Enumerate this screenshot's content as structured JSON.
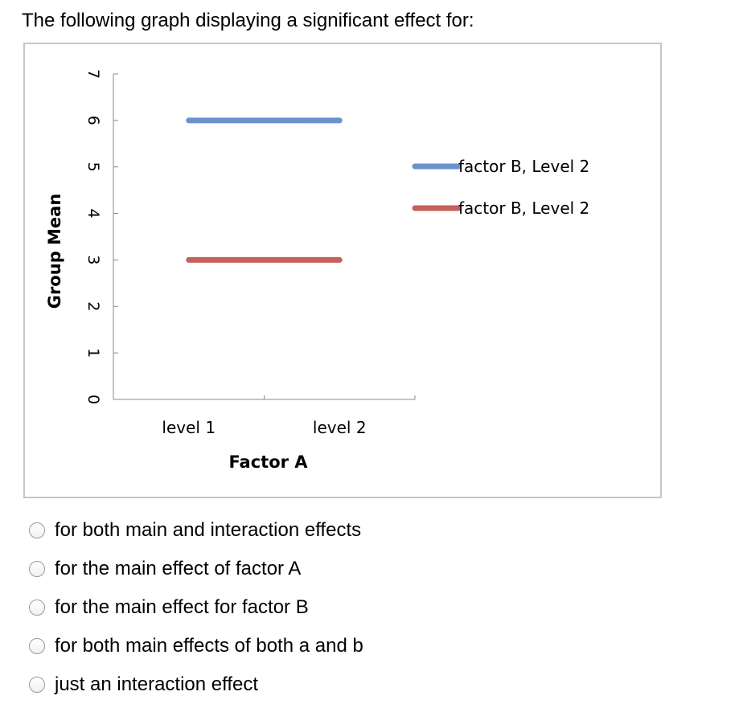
{
  "question": {
    "text": "The following graph displaying a significant effect for:"
  },
  "chart_data": {
    "type": "line",
    "categories": [
      "level 1",
      "level 2"
    ],
    "xlabel": "Factor A",
    "ylabel": "Group Mean",
    "ylim": [
      0,
      7
    ],
    "yticks": [
      0,
      1,
      2,
      3,
      4,
      5,
      6,
      7
    ],
    "grid": false,
    "legend_position": "right",
    "series": [
      {
        "name": "factor B, Level 2",
        "values": [
          6,
          6
        ],
        "color": "#6a93cc"
      },
      {
        "name": "factor B, Level 2",
        "values": [
          3,
          3
        ],
        "color": "#c5605a"
      }
    ]
  },
  "options": [
    {
      "label": "for both main and interaction effects"
    },
    {
      "label": "for the main effect of factor A"
    },
    {
      "label": "for the main effect for factor B"
    },
    {
      "label": "for both main effects of both a and b"
    },
    {
      "label": "just an interaction effect"
    }
  ]
}
